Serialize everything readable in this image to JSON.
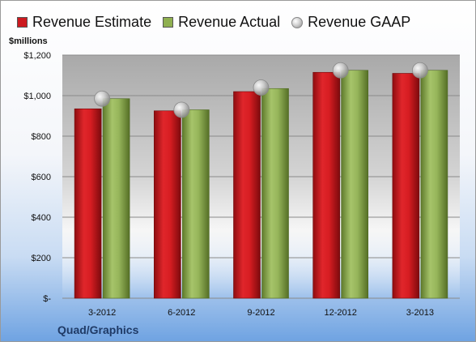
{
  "legend": {
    "estimate": "Revenue Estimate",
    "actual": "Revenue Actual",
    "gaap": "Revenue GAAP"
  },
  "y_unit": "$millions",
  "company": "Quad/Graphics",
  "colors": {
    "estimate": "#cc1a1f",
    "actual": "#8fb050",
    "gaap": "#c8c8c8"
  },
  "chart_data": {
    "type": "bar",
    "categories": [
      "3-2012",
      "6-2012",
      "9-2012",
      "12-2012",
      "3-2013"
    ],
    "series": [
      {
        "name": "Revenue Estimate",
        "values": [
          935,
          925,
          1020,
          1115,
          1110
        ]
      },
      {
        "name": "Revenue Actual",
        "values": [
          985,
          930,
          1035,
          1125,
          1125
        ]
      },
      {
        "name": "Revenue GAAP",
        "values": [
          985,
          930,
          1040,
          1125,
          1125
        ]
      }
    ],
    "ylim": [
      0,
      1200
    ],
    "yticks": [
      0,
      200,
      400,
      600,
      800,
      1000,
      1200
    ],
    "ytick_labels": [
      "$-",
      "$200",
      "$400",
      "$600",
      "$800",
      "$1,000",
      "$1,200"
    ],
    "ylabel": "$millions",
    "grid": true,
    "legend_position": "top"
  }
}
